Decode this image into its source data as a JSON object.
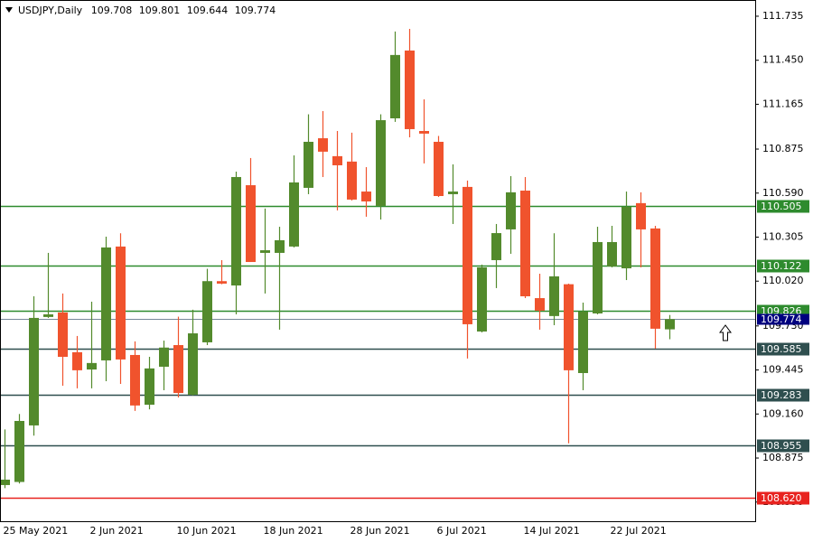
{
  "chart_data": {
    "type": "candlestick",
    "title": "USDJPY,Daily",
    "categories": [
      "25 May 2021",
      null,
      null,
      null,
      null,
      null,
      "2 Jun 2021",
      null,
      null,
      null,
      null,
      null,
      "10 Jun 2021",
      null,
      null,
      null,
      null,
      null,
      "18 Jun 2021",
      null,
      null,
      null,
      null,
      null,
      "28 Jun 2021",
      null,
      null,
      null,
      null,
      null,
      "6 Jul 2021",
      null,
      null,
      null,
      null,
      null,
      "14 Jul 2021",
      null,
      null,
      null,
      null,
      null,
      "22 Jul 2021",
      null,
      null,
      null,
      null
    ],
    "open": [
      108.7,
      108.72,
      109.086,
      109.788,
      109.817,
      109.56,
      109.448,
      109.507,
      110.244,
      109.542,
      109.22,
      109.466,
      109.606,
      109.285,
      109.624,
      110.02,
      109.992,
      110.641,
      110.203,
      110.203,
      110.244,
      110.624,
      110.945,
      110.829,
      110.794,
      110.6,
      110.507,
      111.074,
      111.513,
      110.992,
      110.922,
      110.583,
      110.63,
      109.694,
      110.156,
      110.355,
      110.606,
      109.91,
      109.794,
      110.0,
      109.425,
      109.811,
      110.115,
      110.103,
      110.525,
      110.361,
      109.708
    ],
    "high": [
      109.06,
      109.16,
      109.922,
      110.203,
      109.94,
      109.665,
      109.887,
      110.308,
      110.33,
      109.63,
      109.53,
      109.635,
      109.79,
      109.835,
      110.1,
      110.156,
      110.729,
      110.817,
      110.49,
      110.372,
      110.834,
      111.1,
      111.121,
      110.992,
      110.981,
      110.758,
      111.1,
      111.636,
      111.653,
      111.197,
      110.96,
      110.776,
      110.671,
      110.127,
      110.39,
      110.7,
      110.694,
      110.068,
      110.33,
      110.004,
      109.881,
      110.372,
      110.378,
      110.6,
      110.595,
      110.378,
      109.801
    ],
    "low": [
      108.68,
      108.71,
      109.02,
      109.782,
      109.343,
      109.326,
      109.326,
      109.372,
      109.355,
      109.18,
      109.19,
      109.314,
      109.267,
      109.28,
      109.606,
      110.0,
      109.805,
      110.144,
      109.94,
      109.706,
      110.238,
      110.583,
      110.694,
      110.478,
      110.542,
      110.437,
      110.419,
      111.051,
      110.951,
      110.782,
      110.565,
      110.39,
      109.519,
      109.688,
      109.975,
      110.197,
      109.91,
      109.706,
      109.735,
      108.97,
      109.314,
      109.805,
      110.109,
      110.027,
      110.109,
      109.583,
      109.644
    ],
    "close": [
      108.735,
      109.115,
      109.782,
      109.805,
      109.53,
      109.443,
      109.49,
      110.238,
      109.513,
      109.215,
      109.455,
      109.59,
      109.296,
      109.682,
      110.02,
      110.004,
      110.694,
      110.144,
      110.22,
      110.285,
      110.659,
      110.922,
      110.858,
      110.77,
      110.548,
      110.536,
      111.062,
      111.484,
      111.004,
      110.975,
      110.571,
      110.6,
      109.741,
      110.109,
      110.331,
      110.595,
      109.922,
      109.829,
      110.051,
      109.443,
      109.823,
      110.273,
      110.273,
      110.501,
      110.355,
      109.712,
      109.774
    ],
    "up_color": "#538a2c",
    "down_color": "#f0532d",
    "ylim": [
      108.46,
      111.84
    ],
    "yticks": [
      {
        "value": 108.59,
        "label": "108.590"
      },
      108.875,
      {
        "value": 109.16,
        "label": "109.160"
      },
      109.445,
      {
        "value": 109.73,
        "label": "109.730"
      },
      {
        "value": 110.02,
        "label": "110.020"
      },
      110.305,
      {
        "value": 110.59,
        "label": "110.590"
      },
      110.875,
      111.165,
      {
        "value": 111.45,
        "label": "111.450"
      },
      111.735
    ],
    "levels": [
      {
        "value": 110.505,
        "color": "#2e8b2e"
      },
      {
        "value": 110.122,
        "color": "#2e8b2e"
      },
      {
        "value": 109.826,
        "color": "#2e8b2e"
      },
      {
        "value": 109.585,
        "color": "#2f4f4f"
      },
      {
        "value": 109.283,
        "color": "#2f4f4f"
      },
      {
        "value": 108.955,
        "color": "#2f4f4f"
      },
      {
        "value": {
          "value": 108.62,
          "label": "108.620"
        },
        "color": "#e8231f"
      }
    ],
    "price_line_color": "#778899",
    "price_label_color": "#00007f"
  }
}
